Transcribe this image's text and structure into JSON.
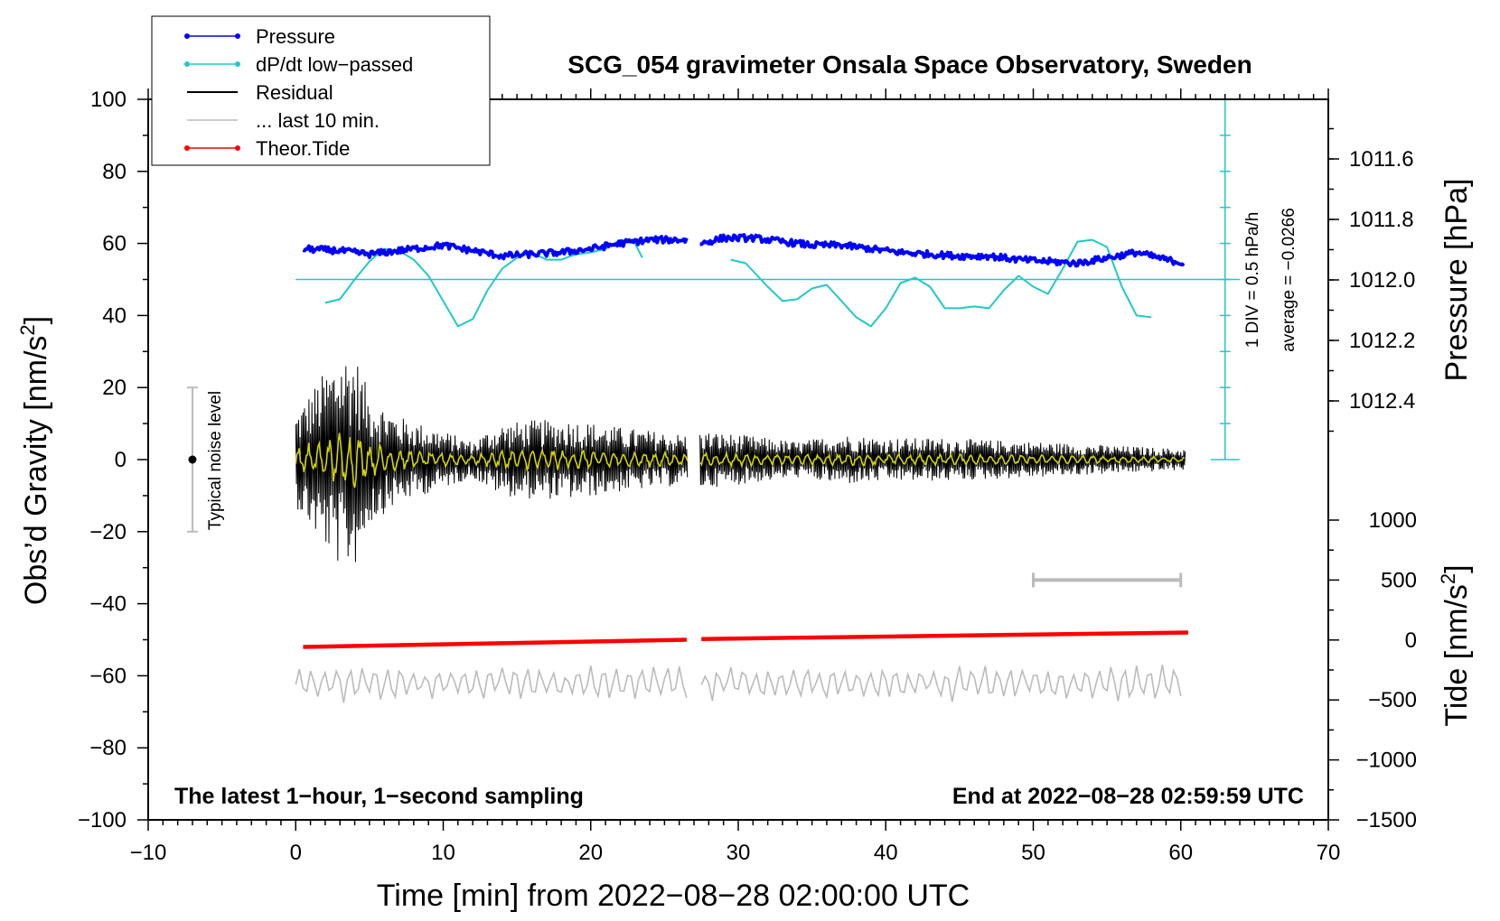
{
  "chart_data": {
    "type": "line",
    "title": "SCG_054 gravimeter Onsala Space Observatory, Sweden",
    "xlabel": "Time [min] from 2022−08−28 02:00:00 UTC",
    "ylabel": "Obs’d Gravity [nm/s",
    "ylabel_sup": "2",
    "ylabel_end": "]",
    "y2label": "Pressure [hPa]",
    "y3label": "Tide [nm/s",
    "y3label_sup": "2",
    "y3label_end": "]",
    "xlim": [
      -10,
      70
    ],
    "ylim": [
      -100,
      100
    ],
    "pressure_range": [
      1011.6,
      1012.4
    ],
    "tide_range": [
      -1500,
      1000
    ],
    "x_ticks": [
      "−10",
      "0",
      "10",
      "20",
      "30",
      "40",
      "50",
      "60",
      "70"
    ],
    "y_ticks": [
      "100",
      "80",
      "60",
      "40",
      "20",
      "0",
      "−20",
      "−40",
      "−60",
      "−80",
      "−100"
    ],
    "pressure_ticks": [
      "1012.4",
      "1012.2",
      "1012.0",
      "1011.8",
      "1011.6"
    ],
    "tide_ticks": [
      "1000",
      "500",
      "0",
      "−500",
      "−1000",
      "−1500"
    ],
    "legend": [
      {
        "label": "Pressure",
        "color": "#0000ff",
        "marker": true
      },
      {
        "label": "dP/dt low−passed",
        "color": "#22c8c8",
        "marker": true
      },
      {
        "label": "Residual",
        "color": "#000000",
        "marker": false
      },
      {
        "label": "... last 10 min.",
        "color": "#bbbbbb",
        "marker": false
      },
      {
        "label": "Theor.Tide",
        "color": "#ff0000",
        "marker": true
      }
    ],
    "annotations": {
      "noise": "Typical noise level",
      "scale_div": "1 DIV = 0.5 hPa/h",
      "average": "average = −0.0266",
      "bottom_left": "The latest 1−hour, 1−second sampling",
      "bottom_right": "End at 2022−08−28 02:59:59 UTC"
    },
    "noise_bar": {
      "x": -7,
      "center": 0,
      "half_range": 20
    },
    "dpdt_zero_level": 50,
    "dpdt_scale_bar": {
      "x": 63,
      "from": 0,
      "to": 100
    },
    "last10_bar": {
      "from": 50,
      "to": 60,
      "tide_level": 500
    },
    "gap": [
      26.6,
      27.4
    ],
    "series": {
      "pressure": [
        {
          "x": 0.5,
          "y": 58.5
        },
        {
          "x": 3,
          "y": 58.0
        },
        {
          "x": 5,
          "y": 57.0
        },
        {
          "x": 7,
          "y": 58.0
        },
        {
          "x": 9,
          "y": 59.0
        },
        {
          "x": 10,
          "y": 59.5
        },
        {
          "x": 12,
          "y": 58.0
        },
        {
          "x": 14,
          "y": 56.5
        },
        {
          "x": 16,
          "y": 57.0
        },
        {
          "x": 18,
          "y": 57.5
        },
        {
          "x": 20,
          "y": 58.5
        },
        {
          "x": 22,
          "y": 60.0
        },
        {
          "x": 24,
          "y": 61.0
        },
        {
          "x": 26.5,
          "y": 61.0
        },
        {
          "x": 27.5,
          "y": 60.0
        },
        {
          "x": 29,
          "y": 61.5
        },
        {
          "x": 31,
          "y": 61.5
        },
        {
          "x": 33,
          "y": 60.5
        },
        {
          "x": 35,
          "y": 59.5
        },
        {
          "x": 37,
          "y": 59.5
        },
        {
          "x": 39,
          "y": 58.5
        },
        {
          "x": 41,
          "y": 57.5
        },
        {
          "x": 43,
          "y": 57.0
        },
        {
          "x": 45,
          "y": 56.5
        },
        {
          "x": 47,
          "y": 56.5
        },
        {
          "x": 49,
          "y": 55.5
        },
        {
          "x": 51,
          "y": 55.0
        },
        {
          "x": 53,
          "y": 54.5
        },
        {
          "x": 55,
          "y": 56.0
        },
        {
          "x": 57,
          "y": 57.5
        },
        {
          "x": 59,
          "y": 55.5
        },
        {
          "x": 60.3,
          "y": 54.5
        }
      ],
      "dpdt": [
        {
          "x": 2,
          "y": 43.5
        },
        {
          "x": 3,
          "y": 44.5
        },
        {
          "x": 4,
          "y": 50
        },
        {
          "x": 5,
          "y": 55
        },
        {
          "x": 6,
          "y": 58.5
        },
        {
          "x": 7,
          "y": 58
        },
        {
          "x": 8,
          "y": 55.5
        },
        {
          "x": 9,
          "y": 51
        },
        {
          "x": 10,
          "y": 44
        },
        {
          "x": 11,
          "y": 37
        },
        {
          "x": 12,
          "y": 39
        },
        {
          "x": 13,
          "y": 47
        },
        {
          "x": 14,
          "y": 53
        },
        {
          "x": 15,
          "y": 56
        },
        {
          "x": 16,
          "y": 57.5
        },
        {
          "x": 17,
          "y": 55.5
        },
        {
          "x": 18,
          "y": 55.5
        },
        {
          "x": 19,
          "y": 57
        },
        {
          "x": 20,
          "y": 57.5
        },
        {
          "x": 21,
          "y": 58.5
        },
        {
          "x": 22,
          "y": 61
        },
        {
          "x": 23,
          "y": 60
        },
        {
          "x": 23.5,
          "y": 56
        },
        {
          "x": 29.5,
          "y": 55.5
        },
        {
          "x": 30.5,
          "y": 54.5
        },
        {
          "x": 32,
          "y": 48
        },
        {
          "x": 33,
          "y": 44
        },
        {
          "x": 34,
          "y": 44.5
        },
        {
          "x": 35,
          "y": 47.5
        },
        {
          "x": 36,
          "y": 48.5
        },
        {
          "x": 37,
          "y": 44
        },
        {
          "x": 38,
          "y": 39.5
        },
        {
          "x": 39,
          "y": 37
        },
        {
          "x": 40,
          "y": 42
        },
        {
          "x": 41,
          "y": 49
        },
        {
          "x": 42,
          "y": 50.5
        },
        {
          "x": 43,
          "y": 48
        },
        {
          "x": 44,
          "y": 42
        },
        {
          "x": 45,
          "y": 42
        },
        {
          "x": 46,
          "y": 42.5
        },
        {
          "x": 47,
          "y": 42
        },
        {
          "x": 48,
          "y": 47
        },
        {
          "x": 49,
          "y": 51
        },
        {
          "x": 50,
          "y": 48
        },
        {
          "x": 51,
          "y": 46
        },
        {
          "x": 52,
          "y": 53
        },
        {
          "x": 53,
          "y": 60.5
        },
        {
          "x": 54,
          "y": 61
        },
        {
          "x": 55,
          "y": 59
        },
        {
          "x": 56,
          "y": 48
        },
        {
          "x": 57,
          "y": 40
        },
        {
          "x": 58,
          "y": 39.5
        }
      ],
      "residual_envelope": [
        {
          "x": 0,
          "amp": 13
        },
        {
          "x": 1.5,
          "amp": 22
        },
        {
          "x": 3,
          "amp": 30
        },
        {
          "x": 4,
          "amp": 30
        },
        {
          "x": 5,
          "amp": 18
        },
        {
          "x": 7,
          "amp": 12
        },
        {
          "x": 10,
          "amp": 8
        },
        {
          "x": 12,
          "amp": 5
        },
        {
          "x": 13,
          "amp": 8
        },
        {
          "x": 14,
          "amp": 10
        },
        {
          "x": 16,
          "amp": 11
        },
        {
          "x": 19,
          "amp": 11
        },
        {
          "x": 22,
          "amp": 9
        },
        {
          "x": 26.5,
          "amp": 7
        },
        {
          "x": 27.5,
          "amp": 8
        },
        {
          "x": 30,
          "amp": 7
        },
        {
          "x": 34,
          "amp": 5
        },
        {
          "x": 37,
          "amp": 7
        },
        {
          "x": 40,
          "amp": 6
        },
        {
          "x": 44,
          "amp": 6
        },
        {
          "x": 50,
          "amp": 5
        },
        {
          "x": 55,
          "amp": 4
        },
        {
          "x": 60,
          "amp": 3
        }
      ],
      "theor_tide": [
        {
          "x": 0.5,
          "y": -52
        },
        {
          "x": 26.5,
          "y": -50
        },
        {
          "x": 27.5,
          "y": -49.8
        },
        {
          "x": 60.5,
          "y": -48
        }
      ],
      "last10_baseline": -62,
      "last10_amp": 3.5
    }
  }
}
